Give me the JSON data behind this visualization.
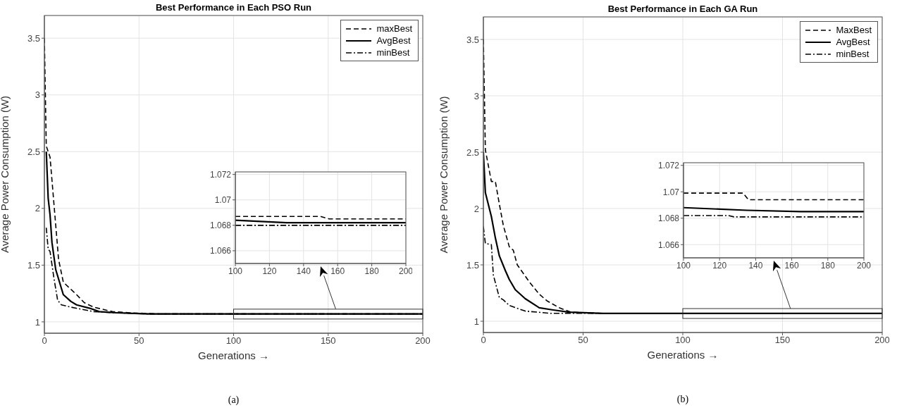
{
  "chart_data": [
    {
      "type": "line",
      "title": "Best Performance in Each PSO Run",
      "xlabel": "Generations →",
      "ylabel": "Average Power Consumption (W)",
      "xlim": [
        0,
        200
      ],
      "xticks": [
        0,
        50,
        100,
        150,
        200
      ],
      "ylim": [
        0.9,
        3.7
      ],
      "yticks": [
        1,
        1.5,
        2,
        2.5,
        3,
        3.5
      ],
      "grid": true,
      "legend": "top right",
      "annotations": [
        "(a)"
      ],
      "series": [
        {
          "name": "maxBest",
          "color": "#000000",
          "line_style": "dashed",
          "x": [
            0,
            1,
            3,
            5,
            7.5,
            10,
            17,
            21,
            26,
            36,
            45,
            60,
            200
          ],
          "values": [
            3.5,
            2.55,
            2.45,
            2.05,
            1.55,
            1.35,
            1.24,
            1.17,
            1.13,
            1.09,
            1.08,
            1.07,
            1.07
          ]
        },
        {
          "name": "AvgBest",
          "color": "#000000",
          "line_style": "solid",
          "x": [
            1,
            2,
            3,
            4,
            6,
            10,
            14,
            17,
            24,
            29,
            38,
            55,
            200
          ],
          "values": [
            2.5,
            2.09,
            1.94,
            1.7,
            1.46,
            1.24,
            1.18,
            1.15,
            1.12,
            1.09,
            1.08,
            1.07,
            1.07
          ]
        },
        {
          "name": "minBest",
          "color": "#000000",
          "line_style": "dashdot",
          "x": [
            1,
            2,
            3,
            5,
            7,
            9,
            14,
            26,
            38,
            55,
            200
          ],
          "values": [
            1.83,
            1.64,
            1.62,
            1.39,
            1.19,
            1.15,
            1.13,
            1.09,
            1.08,
            1.07,
            1.07
          ]
        }
      ]
    },
    {
      "type": "line",
      "xlim": [
        100,
        200
      ],
      "xticks": [
        100,
        120,
        140,
        160,
        180,
        200
      ],
      "ylim": [
        1.065,
        1.0722
      ],
      "yticks": [
        1.066,
        1.068,
        1.07,
        1.072
      ],
      "grid": true,
      "series": [
        {
          "color": "#000000",
          "line_style": "dashed",
          "x": [
            100,
            150,
            155,
            200
          ],
          "values": [
            1.0687,
            1.0687,
            1.0685,
            1.0685
          ]
        },
        {
          "color": "#000000",
          "line_style": "solid",
          "x": [
            100,
            130,
            200
          ],
          "values": [
            1.0684,
            1.0682,
            1.0682
          ]
        },
        {
          "color": "#000000",
          "line_style": "dashdot",
          "x": [
            100,
            200
          ],
          "values": [
            1.068,
            1.068
          ]
        }
      ]
    },
    {
      "type": "line",
      "title": "Best Performance in Each GA Run",
      "xlabel": "Generations →",
      "ylabel": "Average Power Consumption (W)",
      "xlim": [
        0,
        200
      ],
      "xticks": [
        0,
        50,
        100,
        150,
        200
      ],
      "ylim": [
        0.9,
        3.7
      ],
      "yticks": [
        1,
        1.5,
        2,
        2.5,
        3,
        3.5
      ],
      "grid": true,
      "legend": "top right",
      "annotations": [
        "(b)"
      ],
      "series": [
        {
          "name": "MaxBest",
          "color": "#000000",
          "line_style": "dashed",
          "x": [
            0,
            1,
            4,
            6,
            8,
            10,
            13,
            15,
            17,
            23,
            28,
            32,
            38,
            44,
            60,
            200
          ],
          "values": [
            3.5,
            2.52,
            2.24,
            2.24,
            2.04,
            1.85,
            1.66,
            1.63,
            1.5,
            1.35,
            1.24,
            1.18,
            1.12,
            1.08,
            1.07,
            1.07
          ]
        },
        {
          "name": "AvgBest",
          "color": "#000000",
          "line_style": "solid",
          "x": [
            0,
            1,
            4,
            6,
            8,
            11,
            13,
            16,
            21,
            28,
            35,
            43,
            60,
            200
          ],
          "values": [
            2.5,
            2.14,
            1.93,
            1.74,
            1.58,
            1.45,
            1.37,
            1.28,
            1.2,
            1.12,
            1.1,
            1.08,
            1.07,
            1.07
          ]
        },
        {
          "name": "minBest",
          "color": "#000000",
          "line_style": "dashdot",
          "x": [
            0,
            1,
            4,
            5,
            8,
            10,
            13,
            21,
            34,
            200
          ],
          "values": [
            1.84,
            1.69,
            1.68,
            1.41,
            1.21,
            1.19,
            1.14,
            1.09,
            1.07,
            1.07
          ]
        }
      ]
    },
    {
      "type": "line",
      "xlim": [
        100,
        200
      ],
      "xticks": [
        100,
        120,
        140,
        160,
        180,
        200
      ],
      "ylim": [
        1.065,
        1.0722
      ],
      "yticks": [
        1.066,
        1.068,
        1.07,
        1.072
      ],
      "grid": true,
      "series": [
        {
          "color": "#000000",
          "line_style": "dashed",
          "x": [
            100,
            133,
            136,
            200
          ],
          "values": [
            1.0699,
            1.0699,
            1.0694,
            1.0694
          ]
        },
        {
          "color": "#000000",
          "line_style": "solid",
          "x": [
            100,
            135,
            165,
            200
          ],
          "values": [
            1.0688,
            1.0686,
            1.0685,
            1.0685
          ]
        },
        {
          "color": "#000000",
          "line_style": "dashdot",
          "x": [
            100,
            125,
            128,
            200
          ],
          "values": [
            1.0682,
            1.0682,
            1.0681,
            1.0681
          ]
        }
      ]
    }
  ]
}
